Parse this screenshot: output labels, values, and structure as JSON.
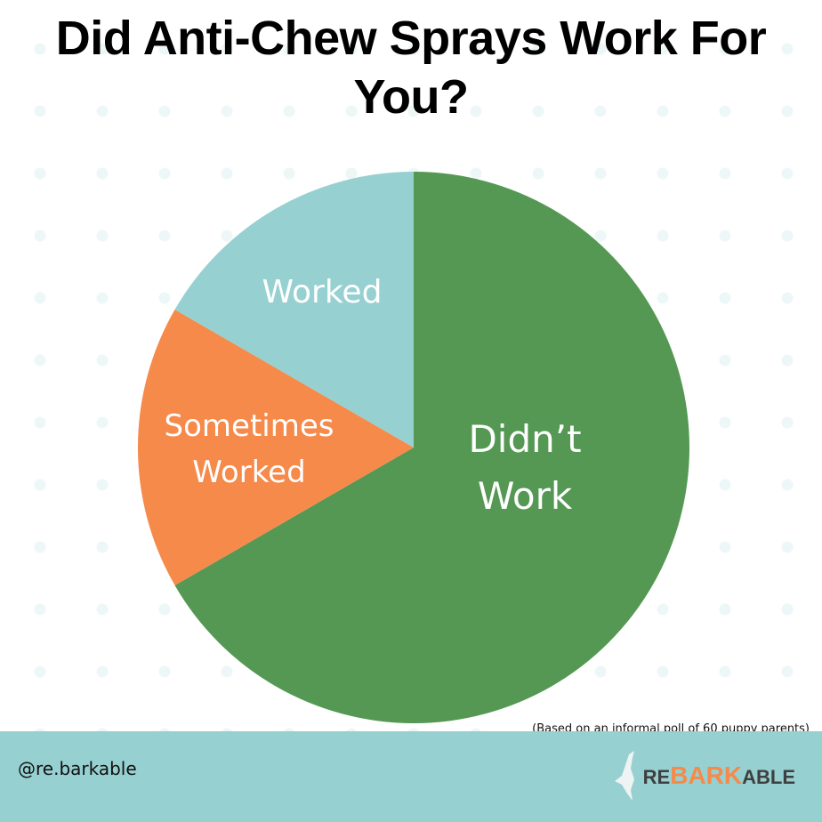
{
  "title": "Did Anti-Chew Sprays Work For You?",
  "note": "(Based on an informal poll of 60 puppy parents)",
  "footer": {
    "handle": "@re.barkable",
    "logo": {
      "pre": "RE",
      "mid": "BARK",
      "post": "ABLE"
    }
  },
  "chart_data": {
    "type": "pie",
    "title": "Did Anti-Chew Sprays Work For You?",
    "slices": [
      {
        "label": "Didn’t Work",
        "value": 40,
        "color": "#549853"
      },
      {
        "label": "Sometimes Worked",
        "value": 10,
        "color": "#f58a4b"
      },
      {
        "label": "Worked",
        "value": 10,
        "color": "#97d0d1"
      }
    ],
    "start": "top",
    "direction": "clockwise"
  }
}
